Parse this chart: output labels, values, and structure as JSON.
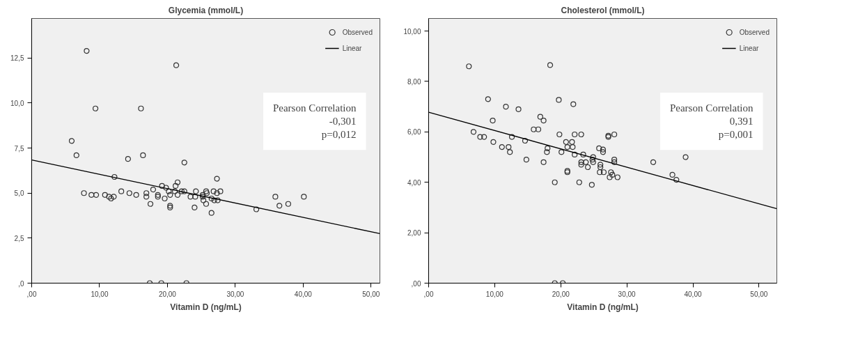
{
  "chart_data": [
    {
      "type": "scatter",
      "title": "Glycemia (mmol/L)",
      "xlabel": "Vitamin D (ng/mL)",
      "marker": "circle",
      "grid": false,
      "legend": "top right",
      "xlim": [
        0,
        51.3
      ],
      "ylim": [
        0,
        14.7
      ],
      "xticks": [
        {
          "value": 0,
          "label": ",00"
        },
        {
          "value": 10,
          "label": "10,00"
        },
        {
          "value": 20,
          "label": "20,00"
        },
        {
          "value": 30,
          "label": "30,00"
        },
        {
          "value": 40,
          "label": "40,00"
        },
        {
          "value": 50,
          "label": "50,00"
        }
      ],
      "yticks": [
        {
          "value": 0,
          "label": ",0"
        },
        {
          "value": 2.5,
          "label": "2,5"
        },
        {
          "value": 5,
          "label": "5,0"
        },
        {
          "value": 7.5,
          "label": "7,5"
        },
        {
          "value": 10,
          "label": "10,0"
        },
        {
          "value": 12.5,
          "label": "12,5"
        }
      ],
      "annotations": [
        "Pearson Correlation\n-0,301\np=0,012"
      ],
      "series": [
        {
          "name": "Observed",
          "color": "#333333",
          "x": [
            8.1,
            21.3,
            9.4,
            16.1,
            5.9,
            6.6,
            14.2,
            16.4,
            22.5,
            12.2,
            27.3,
            21.5,
            21.2,
            19.2,
            19.8,
            13.2,
            17.9,
            20.2,
            21.1,
            22.1,
            22.5,
            24.2,
            25.7,
            26.8,
            27.8,
            7.7,
            14.4,
            16.9,
            25.8,
            27.3,
            8.8,
            9.5,
            10.8,
            15.4,
            18.6,
            20.4,
            21.5,
            25.2,
            11.4,
            12.1,
            16.9,
            18.6,
            23.4,
            24.1,
            25.2,
            26.5,
            35.9,
            40.1,
            11.7,
            19.6,
            25.3,
            26.9,
            27.4,
            17.5,
            25.7,
            37.8,
            36.5,
            20.4,
            20.4,
            24.0,
            33.1,
            26.5,
            17.4,
            19.1,
            22.8
          ],
          "values": [
            12.9,
            12.1,
            9.7,
            9.7,
            7.9,
            7.1,
            6.9,
            7.1,
            6.7,
            5.9,
            5.8,
            5.6,
            5.4,
            5.4,
            5.3,
            5.1,
            5.2,
            5.1,
            5.1,
            5.1,
            5.1,
            5.1,
            5.1,
            5.1,
            5.1,
            5.0,
            5.0,
            5.0,
            5.0,
            5.0,
            4.9,
            4.9,
            4.9,
            4.9,
            4.9,
            4.9,
            4.9,
            4.9,
            4.8,
            4.8,
            4.8,
            4.8,
            4.8,
            4.8,
            4.8,
            4.7,
            4.8,
            4.8,
            4.7,
            4.7,
            4.6,
            4.6,
            4.6,
            4.4,
            4.4,
            4.4,
            4.3,
            4.3,
            4.2,
            4.2,
            4.1,
            3.9,
            0,
            0,
            0
          ]
        },
        {
          "name": "Linear",
          "type": "line",
          "marker": "none",
          "color": "#000000",
          "x": [
            0,
            51.3
          ],
          "values": [
            6.84,
            2.75
          ]
        }
      ]
    },
    {
      "type": "scatter",
      "title": "Cholesterol (mmol/L)",
      "xlabel": "Vitamin D (ng/mL)",
      "marker": "circle",
      "grid": false,
      "legend": "top right",
      "xlim": [
        0,
        52.7
      ],
      "ylim": [
        0,
        10.5
      ],
      "xticks": [
        {
          "value": 0,
          "label": ",00"
        },
        {
          "value": 10,
          "label": "10,00"
        },
        {
          "value": 20,
          "label": "20,00"
        },
        {
          "value": 30,
          "label": "30,00"
        },
        {
          "value": 40,
          "label": "40,00"
        },
        {
          "value": 50,
          "label": "50,00"
        }
      ],
      "yticks": [
        {
          "value": 0,
          "label": ",00"
        },
        {
          "value": 2,
          "label": "2,00"
        },
        {
          "value": 4,
          "label": "4,00"
        },
        {
          "value": 6,
          "label": "6,00"
        },
        {
          "value": 8,
          "label": "8,00"
        },
        {
          "value": 10,
          "label": "10,00"
        }
      ],
      "annotations": [
        "Pearson Correlation\n0,391\np=0,001"
      ],
      "series": [
        {
          "name": "Observed",
          "color": "#333333",
          "x": [
            6.1,
            18.4,
            9.0,
            19.7,
            21.9,
            11.7,
            13.6,
            16.9,
            17.4,
            9.7,
            15.9,
            16.6,
            6.8,
            7.8,
            8.4,
            12.6,
            19.8,
            22.1,
            23.1,
            27.2,
            27.2,
            28.1,
            9.8,
            14.6,
            20.8,
            21.7,
            11.1,
            12.1,
            12.3,
            18.0,
            17.9,
            20.1,
            21.0,
            21.8,
            25.8,
            26.4,
            26.4,
            22.1,
            23.4,
            24.9,
            14.8,
            17.4,
            24.8,
            28.1,
            24.9,
            28.1,
            34.0,
            38.9,
            23.1,
            23.8,
            23.1,
            24.1,
            26.0,
            26.0,
            21.0,
            21.0,
            25.9,
            26.5,
            27.6,
            27.8,
            27.4,
            28.6,
            36.9,
            37.5,
            19.1,
            22.8,
            24.7,
            19.1,
            20.3
          ],
          "values": [
            8.6,
            8.65,
            7.3,
            7.27,
            7.1,
            7.0,
            6.9,
            6.6,
            6.45,
            6.45,
            6.1,
            6.1,
            6.0,
            5.8,
            5.8,
            5.8,
            5.9,
            5.9,
            5.9,
            5.85,
            5.8,
            5.9,
            5.6,
            5.65,
            5.6,
            5.6,
            5.4,
            5.4,
            5.2,
            5.35,
            5.2,
            5.2,
            5.4,
            5.4,
            5.35,
            5.3,
            5.2,
            5.1,
            5.1,
            5.0,
            4.9,
            4.8,
            4.9,
            4.9,
            4.8,
            4.8,
            4.8,
            5.0,
            4.8,
            4.8,
            4.7,
            4.6,
            4.7,
            4.6,
            4.45,
            4.4,
            4.4,
            4.4,
            4.4,
            4.3,
            4.2,
            4.2,
            4.3,
            4.1,
            4.0,
            4.0,
            3.9,
            0,
            0
          ]
        },
        {
          "name": "Linear",
          "type": "line",
          "marker": "none",
          "color": "#000000",
          "x": [
            0,
            52.7
          ],
          "values": [
            6.78,
            2.95
          ]
        }
      ]
    }
  ]
}
